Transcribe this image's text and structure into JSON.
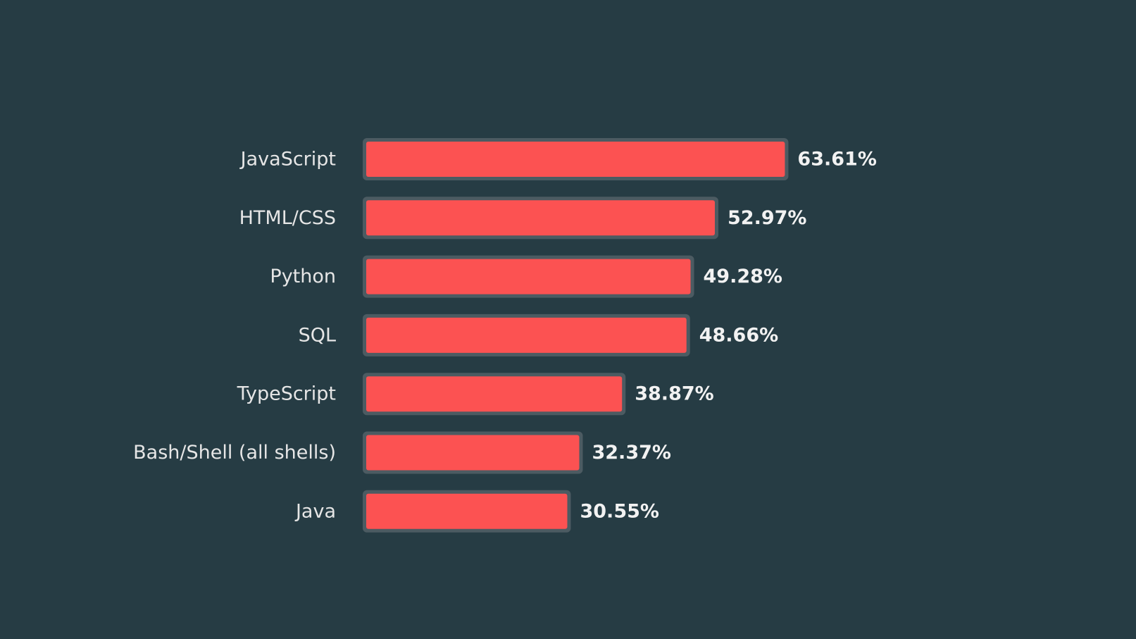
{
  "chart_data": {
    "type": "bar",
    "orientation": "horizontal",
    "categories": [
      "JavaScript",
      "HTML/CSS",
      "Python",
      "SQL",
      "TypeScript",
      "Bash/Shell (all shells)",
      "Java"
    ],
    "values": [
      63.61,
      52.97,
      49.28,
      48.66,
      38.87,
      32.37,
      30.55
    ],
    "value_labels": [
      "63.61%",
      "52.97%",
      "49.28%",
      "48.66%",
      "38.87%",
      "32.37%",
      "30.55%"
    ],
    "unit": "%",
    "title": "",
    "xlabel": "",
    "ylabel": "",
    "xlim": [
      0,
      100
    ],
    "grid": false,
    "legend": "none"
  },
  "colors": {
    "background": "#263c44",
    "bar_fill": "#fc5252",
    "bar_outline": "#4c5b62",
    "category_text": "#e6e6e6",
    "value_text": "#f2f2f2"
  }
}
